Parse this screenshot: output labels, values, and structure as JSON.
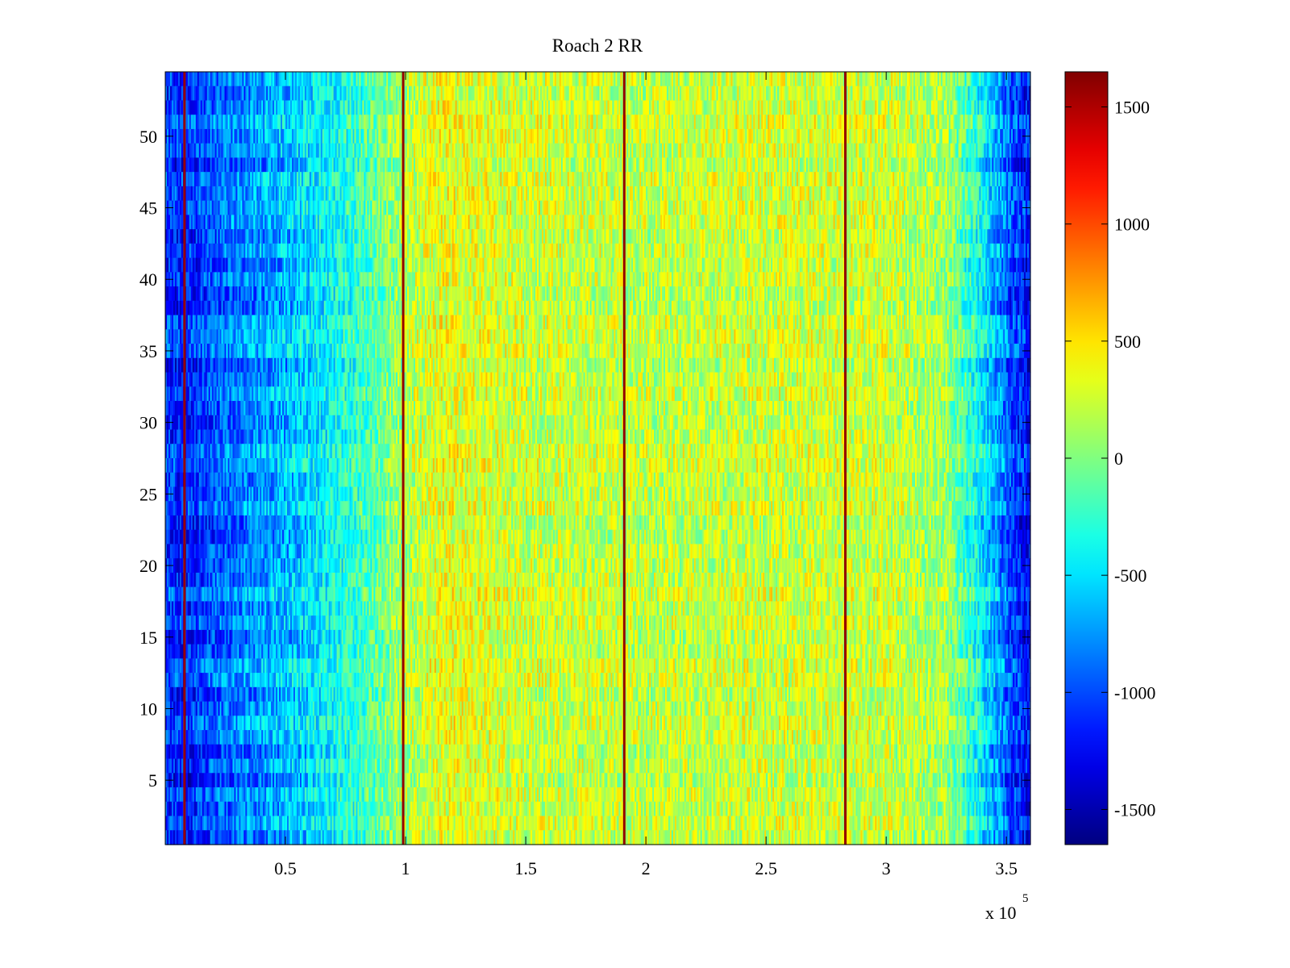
{
  "chart_data": {
    "type": "heatmap",
    "title": "Roach 2 RR",
    "xlabel": "",
    "ylabel": "",
    "x_exponent_label": "x 10",
    "x_exponent_power": "5",
    "xlim": [
      0,
      360000
    ],
    "ylim": [
      0.5,
      54.5
    ],
    "rows": 54,
    "x_ticks": [
      50000,
      100000,
      150000,
      200000,
      250000,
      300000,
      350000
    ],
    "x_tick_labels": [
      "0.5",
      "1",
      "1.5",
      "2",
      "2.5",
      "3",
      "3.5"
    ],
    "y_ticks": [
      5,
      10,
      15,
      20,
      25,
      30,
      35,
      40,
      45,
      50
    ],
    "y_tick_labels": [
      "5",
      "10",
      "15",
      "20",
      "25",
      "30",
      "35",
      "40",
      "45",
      "50"
    ],
    "colorbar": {
      "colormap": "jet",
      "clim": [
        -1650,
        1650
      ],
      "ticks": [
        1500,
        1000,
        500,
        0,
        -500,
        -1000,
        -1500
      ],
      "tick_labels": [
        "1500",
        "1000",
        "500",
        "0",
        "-500",
        "-1000",
        "-1500"
      ]
    },
    "baseline_profile": {
      "x": [
        0,
        8000,
        20000,
        50000,
        80000,
        100000,
        115000,
        150000,
        200000,
        250000,
        300000,
        325000,
        340000,
        352000,
        360000
      ],
      "value": [
        -1050,
        -1150,
        -950,
        -650,
        -250,
        150,
        350,
        250,
        200,
        250,
        250,
        100,
        -450,
        -1000,
        -1250
      ]
    },
    "peak_columns": [
      {
        "x": 8000,
        "value": 1650
      },
      {
        "x": 99000,
        "value": 1650
      },
      {
        "x": 191000,
        "value": 1650
      },
      {
        "x": 283000,
        "value": 1650
      }
    ]
  }
}
